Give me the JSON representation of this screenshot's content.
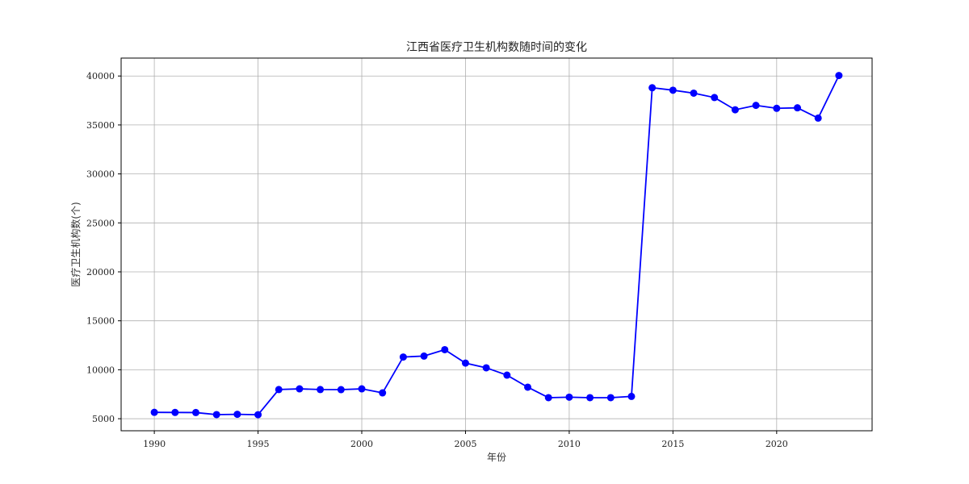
{
  "chart_data": {
    "type": "line",
    "title": "江西省医疗卫生机构数随时间的变化",
    "xlabel": "年份",
    "ylabel": "医疗卫生机构数(个)",
    "xlim": [
      1988.4,
      2024.6
    ],
    "ylim": [
      3770,
      41830
    ],
    "x_ticks": [
      1990,
      1995,
      2000,
      2005,
      2010,
      2015,
      2020
    ],
    "y_ticks": [
      5000,
      10000,
      15000,
      20000,
      25000,
      30000,
      35000,
      40000
    ],
    "grid": true,
    "colors": {
      "line": "#0000ff",
      "marker": "#0000ff"
    },
    "series": [
      {
        "x": [
          1990,
          1991,
          1992,
          1993,
          1994,
          1995,
          1996,
          1997,
          1998,
          1999,
          2000,
          2001,
          2002,
          2003,
          2004,
          2005,
          2006,
          2007,
          2008,
          2009,
          2010,
          2011,
          2012,
          2013,
          2014,
          2015,
          2016,
          2017,
          2018,
          2019,
          2020,
          2021,
          2022,
          2023
        ],
        "values": [
          5650,
          5640,
          5630,
          5420,
          5450,
          5410,
          7980,
          8050,
          7980,
          7970,
          8050,
          7640,
          11300,
          11400,
          12050,
          10680,
          10200,
          9450,
          8220,
          7150,
          7200,
          7150,
          7150,
          7280,
          38800,
          38550,
          38250,
          37800,
          36550,
          37000,
          36700,
          36750,
          35700,
          40050
        ]
      }
    ]
  }
}
